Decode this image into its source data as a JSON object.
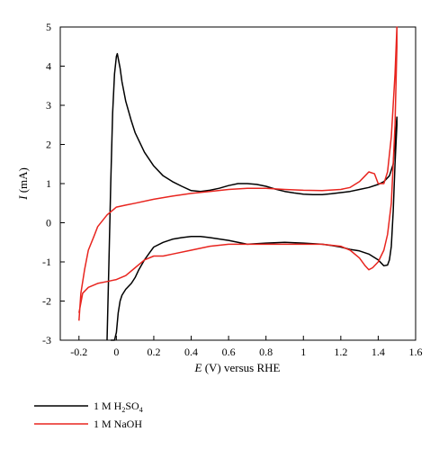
{
  "chart_data": {
    "type": "line",
    "title": "",
    "xlabel_var": "E",
    "xlabel_rest": " (V) versus RHE",
    "ylabel_var": "I",
    "ylabel_rest": " (mA)",
    "xlim": [
      -0.3,
      1.6
    ],
    "ylim": [
      -3,
      5
    ],
    "x_ticks": [
      "-0.2",
      "0",
      "0.2",
      "0.4",
      "0.6",
      "0.8",
      "1",
      "1.2",
      "1.4",
      "1.6"
    ],
    "x_tick_values": [
      -0.2,
      0,
      0.2,
      0.4,
      0.6,
      0.8,
      1.0,
      1.2,
      1.4,
      1.6
    ],
    "y_ticks": [
      "-3",
      "-2",
      "-1",
      "0",
      "1",
      "2",
      "3",
      "4",
      "5"
    ],
    "y_tick_values": [
      -3,
      -2,
      -1,
      0,
      1,
      2,
      3,
      4,
      5
    ],
    "grid": false,
    "legend_position": "below",
    "series": [
      {
        "name": "1 M H2SO4",
        "legend_main": "1 M H",
        "legend_sub1": "2",
        "legend_mid": "SO",
        "legend_sub2": "4",
        "color": "#000000",
        "x": [
          -0.05,
          -0.04,
          -0.03,
          -0.02,
          -0.01,
          0.0,
          0.005,
          0.01,
          0.02,
          0.03,
          0.05,
          0.08,
          0.1,
          0.15,
          0.2,
          0.25,
          0.3,
          0.35,
          0.4,
          0.45,
          0.5,
          0.55,
          0.6,
          0.65,
          0.7,
          0.75,
          0.8,
          0.85,
          0.9,
          0.95,
          1.0,
          1.05,
          1.1,
          1.15,
          1.2,
          1.25,
          1.3,
          1.35,
          1.4,
          1.43,
          1.46,
          1.48,
          1.5,
          1.5,
          1.49,
          1.48,
          1.47,
          1.46,
          1.45,
          1.43,
          1.4,
          1.35,
          1.3,
          1.25,
          1.2,
          1.15,
          1.1,
          1.0,
          0.9,
          0.8,
          0.7,
          0.6,
          0.5,
          0.45,
          0.4,
          0.35,
          0.3,
          0.25,
          0.2,
          0.18,
          0.15,
          0.12,
          0.1,
          0.08,
          0.05,
          0.03,
          0.02,
          0.01,
          0.0,
          -0.01,
          -0.02,
          -0.03
        ],
        "y": [
          -3.0,
          -1.0,
          1.0,
          2.8,
          3.8,
          4.25,
          4.32,
          4.2,
          3.95,
          3.6,
          3.1,
          2.6,
          2.3,
          1.8,
          1.45,
          1.2,
          1.05,
          0.93,
          0.82,
          0.8,
          0.83,
          0.88,
          0.95,
          1.0,
          1.0,
          0.98,
          0.93,
          0.86,
          0.8,
          0.76,
          0.73,
          0.72,
          0.72,
          0.74,
          0.77,
          0.8,
          0.85,
          0.9,
          0.98,
          1.05,
          1.2,
          1.5,
          2.7,
          2.5,
          1.5,
          0.3,
          -0.6,
          -0.95,
          -1.08,
          -1.1,
          -0.95,
          -0.8,
          -0.72,
          -0.68,
          -0.62,
          -0.58,
          -0.55,
          -0.52,
          -0.5,
          -0.52,
          -0.55,
          -0.45,
          -0.38,
          -0.35,
          -0.35,
          -0.38,
          -0.42,
          -0.5,
          -0.62,
          -0.75,
          -0.95,
          -1.2,
          -1.4,
          -1.55,
          -1.7,
          -1.85,
          -2.0,
          -2.3,
          -2.8,
          -3.0,
          -3.0,
          -3.0
        ]
      },
      {
        "name": "1 M NaOH",
        "legend_main": "1 M NaOH",
        "color": "#e8251f",
        "x": [
          -0.2,
          -0.19,
          -0.17,
          -0.15,
          -0.12,
          -0.1,
          -0.05,
          0.0,
          0.05,
          0.1,
          0.2,
          0.3,
          0.4,
          0.5,
          0.6,
          0.7,
          0.8,
          0.9,
          1.0,
          1.1,
          1.2,
          1.25,
          1.3,
          1.33,
          1.35,
          1.38,
          1.4,
          1.43,
          1.45,
          1.47,
          1.49,
          1.5,
          1.5,
          1.49,
          1.47,
          1.45,
          1.43,
          1.4,
          1.37,
          1.35,
          1.33,
          1.3,
          1.25,
          1.2,
          1.1,
          1.0,
          0.9,
          0.8,
          0.7,
          0.6,
          0.5,
          0.4,
          0.3,
          0.25,
          0.2,
          0.15,
          0.1,
          0.05,
          0.0,
          -0.05,
          -0.1,
          -0.15,
          -0.18,
          -0.2
        ],
        "y": [
          -2.5,
          -1.8,
          -1.2,
          -0.7,
          -0.35,
          -0.1,
          0.2,
          0.4,
          0.45,
          0.5,
          0.6,
          0.68,
          0.75,
          0.8,
          0.85,
          0.88,
          0.88,
          0.85,
          0.83,
          0.82,
          0.85,
          0.9,
          1.05,
          1.2,
          1.3,
          1.25,
          1.0,
          1.0,
          1.3,
          2.2,
          3.8,
          5.0,
          4.5,
          2.5,
          0.5,
          -0.3,
          -0.7,
          -1.0,
          -1.15,
          -1.2,
          -1.1,
          -0.9,
          -0.7,
          -0.6,
          -0.55,
          -0.55,
          -0.55,
          -0.55,
          -0.55,
          -0.55,
          -0.6,
          -0.7,
          -0.8,
          -0.85,
          -0.85,
          -0.95,
          -1.15,
          -1.35,
          -1.45,
          -1.5,
          -1.55,
          -1.65,
          -1.8,
          -2.3
        ]
      }
    ]
  }
}
